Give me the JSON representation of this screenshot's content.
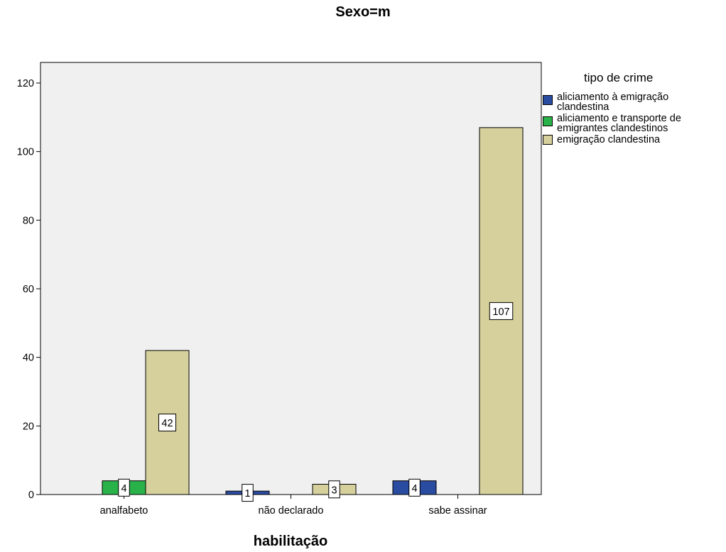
{
  "chart_data": {
    "type": "bar",
    "title": "Sexo=m",
    "xlabel": "habilitação",
    "ylabel": "",
    "categories": [
      "analfabeto",
      "não declarado",
      "sabe assinar"
    ],
    "ylim": [
      0,
      126
    ],
    "yticks": [
      0,
      20,
      40,
      60,
      80,
      100,
      120
    ],
    "legend_title": "tipo de crime",
    "legend_position": "right",
    "series": [
      {
        "name": "aliciamento à emigração clandestina",
        "name_lines": [
          "aliciamento à emigração",
          "clandestina"
        ],
        "color": "#2a4ca0",
        "values": [
          null,
          1,
          4
        ]
      },
      {
        "name": "aliciamento e transporte de emigrantes clandestinos",
        "name_lines": [
          "aliciamento e transporte de",
          "emigrantes clandestinos"
        ],
        "color": "#2ab24a",
        "values": [
          4,
          null,
          null
        ]
      },
      {
        "name": "emigração clandestina",
        "name_lines": [
          "emigração clandestina"
        ],
        "color": "#d6d09c",
        "values": [
          42,
          3,
          107
        ]
      }
    ],
    "grid": false,
    "plot_background": "#f0f0f0"
  }
}
